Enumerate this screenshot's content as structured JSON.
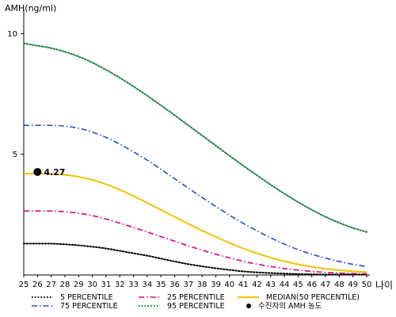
{
  "chart_data": {
    "type": "line",
    "ylabel": "AMH(ng/ml)",
    "xlabel": "나이",
    "xlim": [
      25,
      50
    ],
    "ylim": [
      0,
      11
    ],
    "x_ticks": [
      25,
      26,
      27,
      28,
      29,
      30,
      31,
      32,
      33,
      34,
      35,
      36,
      37,
      38,
      39,
      40,
      41,
      42,
      43,
      44,
      45,
      46,
      47,
      48,
      49,
      50
    ],
    "y_ticks": [
      5,
      10
    ],
    "x": [
      25,
      26,
      27,
      28,
      29,
      30,
      31,
      32,
      33,
      34,
      35,
      36,
      37,
      38,
      39,
      40,
      41,
      42,
      43,
      44,
      45,
      46,
      47,
      48,
      49,
      50
    ],
    "grid": false,
    "series": [
      {
        "name": "5 PERCENTILE",
        "color": "#000000",
        "dash": "dotted",
        "values": [
          1.3,
          1.3,
          1.3,
          1.27,
          1.23,
          1.17,
          1.1,
          1.0,
          0.9,
          0.8,
          0.68,
          0.56,
          0.45,
          0.36,
          0.28,
          0.21,
          0.15,
          0.11,
          0.08,
          0.06,
          0.04,
          0.03,
          0.02,
          0.02,
          0.02,
          0.02
        ]
      },
      {
        "name": "25 PERCENTILE",
        "color": "#e0007f",
        "dash": "dashdot",
        "values": [
          2.65,
          2.65,
          2.65,
          2.62,
          2.56,
          2.46,
          2.32,
          2.15,
          1.97,
          1.78,
          1.59,
          1.4,
          1.21,
          1.03,
          0.86,
          0.71,
          0.57,
          0.45,
          0.35,
          0.27,
          0.2,
          0.15,
          0.11,
          0.08,
          0.06,
          0.05
        ]
      },
      {
        "name": "MEDIAN(50 PERCENTILE)",
        "color": "#f2c200",
        "dash": "solid",
        "values": [
          4.2,
          4.2,
          4.19,
          4.15,
          4.07,
          3.94,
          3.76,
          3.53,
          3.27,
          2.99,
          2.7,
          2.41,
          2.12,
          1.84,
          1.58,
          1.33,
          1.1,
          0.9,
          0.72,
          0.57,
          0.44,
          0.34,
          0.26,
          0.2,
          0.15,
          0.12
        ]
      },
      {
        "name": "75 PERCENTILE",
        "color": "#2a4cc4",
        "dash": "dashdot",
        "values": [
          6.2,
          6.2,
          6.2,
          6.17,
          6.08,
          5.92,
          5.7,
          5.42,
          5.1,
          4.76,
          4.38,
          3.99,
          3.6,
          3.21,
          2.84,
          2.48,
          2.14,
          1.83,
          1.54,
          1.28,
          1.05,
          0.86,
          0.7,
          0.56,
          0.44,
          0.35
        ]
      },
      {
        "name": "95 PERCENTILE",
        "color": "#1e7f45",
        "dash": "dotted",
        "values": [
          9.6,
          9.5,
          9.4,
          9.25,
          9.05,
          8.8,
          8.5,
          8.17,
          7.81,
          7.43,
          7.03,
          6.62,
          6.2,
          5.78,
          5.36,
          4.94,
          4.53,
          4.13,
          3.74,
          3.37,
          3.02,
          2.7,
          2.41,
          2.16,
          1.95,
          1.78
        ]
      }
    ],
    "patient": {
      "name": "수진자의 AMH 농도",
      "x": 26,
      "y": 4.27,
      "label": "4.27",
      "color": "#000000"
    },
    "legend": {
      "placement": "bottom",
      "order": [
        "5 PERCENTILE",
        "25 PERCENTILE",
        "MEDIAN(50 PERCENTILE)",
        "75 PERCENTILE",
        "95 PERCENTILE",
        "수진자의 AMH 농도"
      ]
    }
  }
}
